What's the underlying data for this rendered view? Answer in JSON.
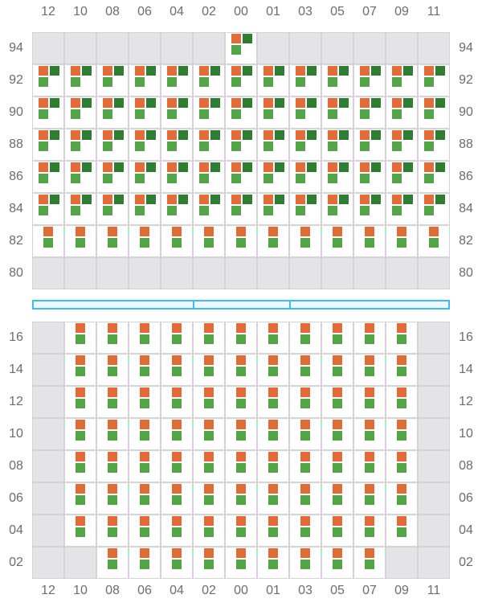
{
  "columns": [
    "12",
    "10",
    "08",
    "06",
    "04",
    "02",
    "00",
    "01",
    "03",
    "05",
    "07",
    "09",
    "11"
  ],
  "colors": {
    "orange": "#e06c37",
    "dark_green": "#2e7d32",
    "light_green": "#53a548",
    "empty": "#e4e4e6",
    "border": "#d4d4d8",
    "divider": "#38bdf8"
  },
  "upper_section": {
    "rows": [
      {
        "label": "94",
        "cells": [
          "empty",
          "empty",
          "empty",
          "empty",
          "empty",
          "empty",
          "full",
          "empty",
          "empty",
          "empty",
          "empty",
          "empty",
          "empty"
        ]
      },
      {
        "label": "92",
        "cells": [
          "full",
          "full",
          "full",
          "full",
          "full",
          "full",
          "full",
          "full",
          "full",
          "full",
          "full",
          "full",
          "full"
        ]
      },
      {
        "label": "90",
        "cells": [
          "full",
          "full",
          "full",
          "full",
          "full",
          "full",
          "full",
          "full",
          "full",
          "full",
          "full",
          "full",
          "full"
        ]
      },
      {
        "label": "88",
        "cells": [
          "full",
          "full",
          "full",
          "full",
          "full",
          "full",
          "full",
          "full",
          "full",
          "full",
          "full",
          "full",
          "full"
        ]
      },
      {
        "label": "86",
        "cells": [
          "full",
          "full",
          "full",
          "full",
          "full",
          "full",
          "full",
          "full",
          "full",
          "full",
          "full",
          "full",
          "full"
        ]
      },
      {
        "label": "84",
        "cells": [
          "full",
          "full",
          "full",
          "full",
          "full",
          "full",
          "full",
          "full",
          "full",
          "full",
          "full",
          "full",
          "full"
        ]
      },
      {
        "label": "82",
        "cells": [
          "pair",
          "pair",
          "pair",
          "pair",
          "pair",
          "pair",
          "pair",
          "pair",
          "pair",
          "pair",
          "pair",
          "pair",
          "pair"
        ]
      },
      {
        "label": "80",
        "cells": [
          "empty",
          "empty",
          "empty",
          "empty",
          "empty",
          "empty",
          "empty",
          "empty",
          "empty",
          "empty",
          "empty",
          "empty",
          "empty"
        ]
      }
    ]
  },
  "lower_section": {
    "rows": [
      {
        "label": "16",
        "cells": [
          "empty",
          "pair",
          "pair",
          "pair",
          "pair",
          "pair",
          "pair",
          "pair",
          "pair",
          "pair",
          "pair",
          "pair",
          "empty"
        ]
      },
      {
        "label": "14",
        "cells": [
          "empty",
          "pair",
          "pair",
          "pair",
          "pair",
          "pair",
          "pair",
          "pair",
          "pair",
          "pair",
          "pair",
          "pair",
          "empty"
        ]
      },
      {
        "label": "12",
        "cells": [
          "empty",
          "pair",
          "pair",
          "pair",
          "pair",
          "pair",
          "pair",
          "pair",
          "pair",
          "pair",
          "pair",
          "pair",
          "empty"
        ]
      },
      {
        "label": "10",
        "cells": [
          "empty",
          "pair",
          "pair",
          "pair",
          "pair",
          "pair",
          "pair",
          "pair",
          "pair",
          "pair",
          "pair",
          "pair",
          "empty"
        ]
      },
      {
        "label": "08",
        "cells": [
          "empty",
          "pair",
          "pair",
          "pair",
          "pair",
          "pair",
          "pair",
          "pair",
          "pair",
          "pair",
          "pair",
          "pair",
          "empty"
        ]
      },
      {
        "label": "06",
        "cells": [
          "empty",
          "pair",
          "pair",
          "pair",
          "pair",
          "pair",
          "pair",
          "pair",
          "pair",
          "pair",
          "pair",
          "pair",
          "empty"
        ]
      },
      {
        "label": "04",
        "cells": [
          "empty",
          "pair",
          "pair",
          "pair",
          "pair",
          "pair",
          "pair",
          "pair",
          "pair",
          "pair",
          "pair",
          "pair",
          "empty"
        ]
      },
      {
        "label": "02",
        "cells": [
          "empty",
          "empty",
          "pair",
          "pair",
          "pair",
          "pair",
          "pair",
          "pair",
          "pair",
          "pair",
          "pair",
          "empty",
          "empty"
        ]
      }
    ]
  }
}
